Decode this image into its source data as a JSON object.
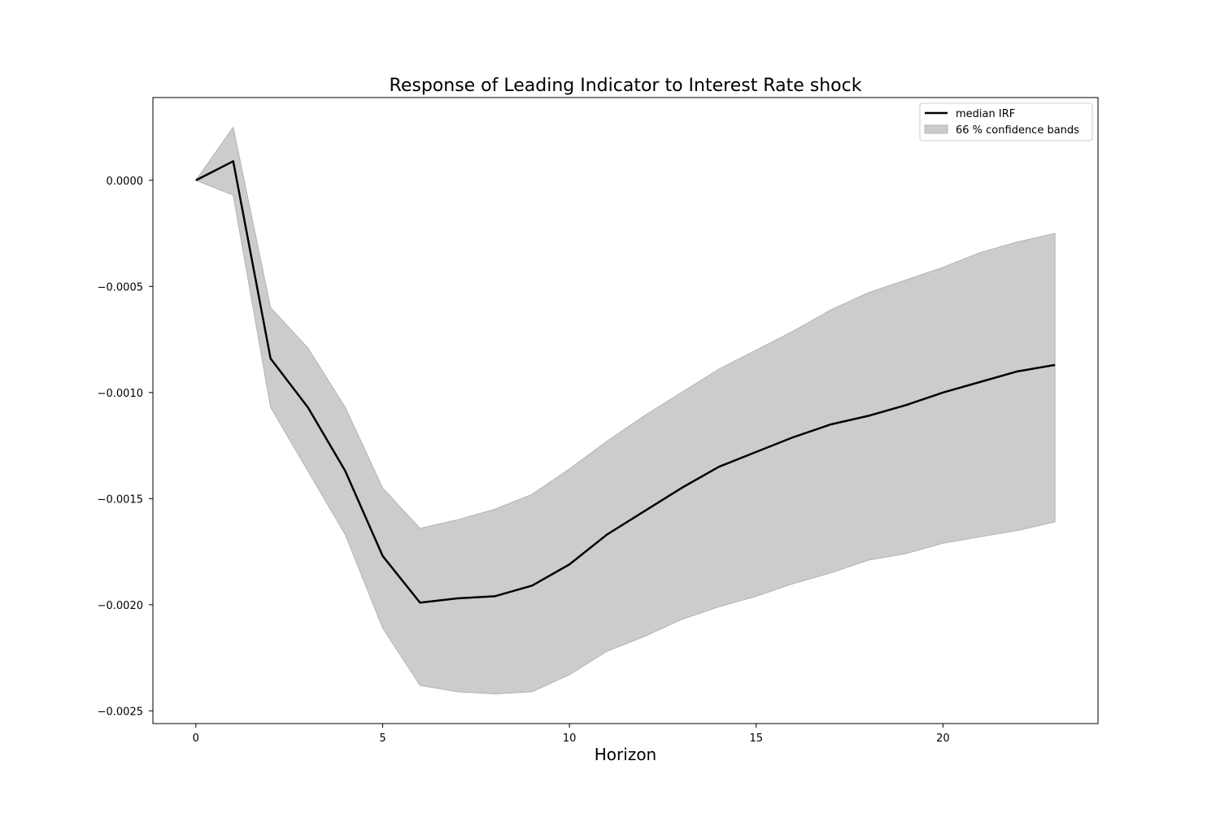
{
  "chart_data": {
    "type": "line",
    "title": "Response of Leading Indicator to Interest Rate shock",
    "xlabel": "Horizon",
    "ylabel": "",
    "xlim": [
      -1.15,
      24.15
    ],
    "ylim": [
      -0.00256,
      0.00039
    ],
    "xticks": [
      0,
      5,
      10,
      15,
      20
    ],
    "yticks": [
      0.0,
      -0.0005,
      -0.001,
      -0.0015,
      -0.002,
      -0.0025
    ],
    "ytick_labels": [
      "0.0000",
      "−0.0005",
      "−0.0010",
      "−0.0015",
      "−0.0020",
      "−0.0025"
    ],
    "grid": false,
    "legend_position": "top-right",
    "x": [
      0,
      1,
      2,
      3,
      4,
      5,
      6,
      7,
      8,
      9,
      10,
      11,
      12,
      13,
      14,
      15,
      16,
      17,
      18,
      19,
      20,
      21,
      22,
      23
    ],
    "series": [
      {
        "name": "median IRF",
        "kind": "line",
        "color": "#000000",
        "values": [
          0.0,
          9e-05,
          -0.00084,
          -0.00107,
          -0.00137,
          -0.00177,
          -0.00199,
          -0.00197,
          -0.00196,
          -0.00191,
          -0.00181,
          -0.00167,
          -0.00156,
          -0.00145,
          -0.00135,
          -0.00128,
          -0.00121,
          -0.00115,
          -0.00111,
          -0.00106,
          -0.001,
          -0.00095,
          -0.0009,
          -0.00087
        ]
      },
      {
        "name": "66 % confidence bands",
        "kind": "band",
        "color": "#cccccc",
        "upper": [
          0.0,
          0.00025,
          -0.0006,
          -0.00079,
          -0.00107,
          -0.00145,
          -0.00164,
          -0.0016,
          -0.00155,
          -0.00148,
          -0.00136,
          -0.00123,
          -0.00111,
          -0.001,
          -0.00089,
          -0.0008,
          -0.00071,
          -0.00061,
          -0.00053,
          -0.00047,
          -0.00041,
          -0.00034,
          -0.00029,
          -0.00025
        ],
        "lower": [
          0.0,
          -7e-05,
          -0.00107,
          -0.00137,
          -0.00167,
          -0.00211,
          -0.00238,
          -0.00241,
          -0.00242,
          -0.00241,
          -0.00233,
          -0.00222,
          -0.00215,
          -0.00207,
          -0.00201,
          -0.00196,
          -0.0019,
          -0.00185,
          -0.00179,
          -0.00176,
          -0.00171,
          -0.00168,
          -0.00165,
          -0.00161
        ]
      }
    ]
  }
}
